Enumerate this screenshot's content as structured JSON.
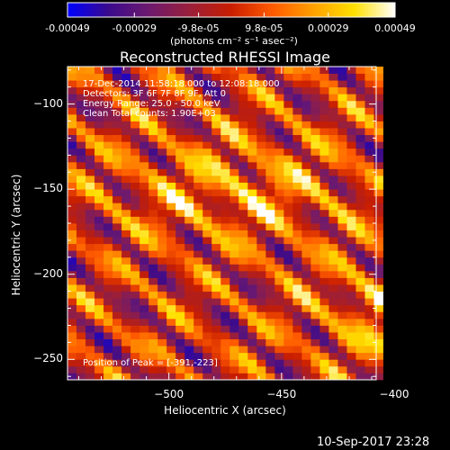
{
  "colorbar": {
    "colormap": [
      "#0000ff",
      "#3a0a8c",
      "#6e1a6e",
      "#9b1f3a",
      "#c81e00",
      "#ff5a00",
      "#ffa000",
      "#ffe000",
      "#ffffff"
    ],
    "ticks": [
      "-0.00049",
      "-0.00029",
      "-9.8e-05",
      "9.8e-05",
      "0.00029",
      "0.00049"
    ],
    "tick_values": [
      -0.00049,
      -0.00029,
      -9.8e-05,
      9.8e-05,
      0.00029,
      0.00049
    ],
    "range": [
      -0.00049,
      0.00049
    ],
    "units": "(photons cm⁻² s⁻¹ asec⁻²)"
  },
  "chart_data": {
    "type": "heatmap",
    "title": "Reconstructed RHESSI Image",
    "xlabel": "Heliocentric X (arcsec)",
    "ylabel": "Heliocentric Y (arcsec)",
    "xlim": [
      -545,
      -408
    ],
    "ylim": [
      -262,
      -78
    ],
    "xticks": [
      -500,
      -450,
      -400
    ],
    "yticks": [
      -100,
      -150,
      -200,
      -250
    ],
    "grid": false,
    "pixel_size_arcsec": 4,
    "peak_position": [
      -391,
      -223
    ],
    "annotations": {
      "time_range": "17-Dec-2014 11:58:18.000 to 12:08:18.000",
      "detectors": "Detectors: 3F 6F 7F 8F 9F, Att 0",
      "energy": "Energy Range: 25.0 - 50.0 keV",
      "method": "Clean    Total counts: 1.90E+03",
      "peak": "Position of Peak = [-391,-223]"
    }
  },
  "footer": {
    "timestamp": "10-Sep-2017 23:28"
  }
}
